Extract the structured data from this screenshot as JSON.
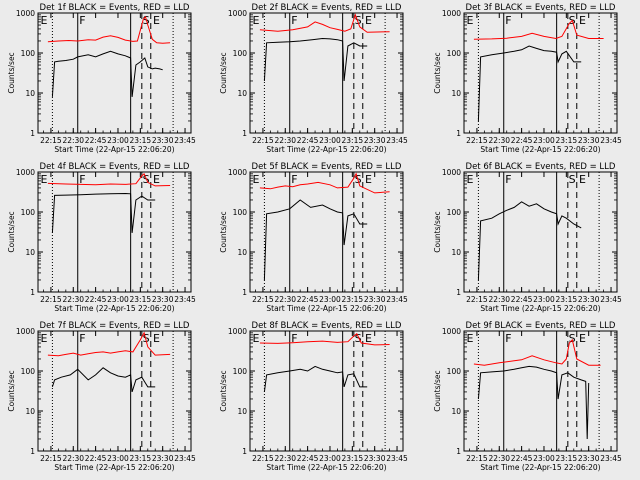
{
  "colors": {
    "background": "#ebebeb",
    "events": "#000000",
    "lld": "#ff0000"
  },
  "markers": {
    "e": "E",
    "f": "F",
    "s": "S",
    "e2": "E"
  },
  "x_tick_labels": [
    "22:15",
    "22:30",
    "22:45",
    "23:00",
    "23:15",
    "23:30",
    "23:45"
  ],
  "y_tick_labels": [
    "1",
    "10",
    "100",
    "1000"
  ],
  "ylabel": "Counts/sec",
  "xlabel": "Start Time (22-Apr-15 22:06:20)",
  "chart_data": [
    {
      "type": "line",
      "title": "Det 1f BLACK = Events, RED = LLD",
      "xlabel": "Start Time (22-Apr-15 22:06:20)",
      "ylabel": "Counts/sec",
      "ylim": [
        1,
        1000
      ],
      "yscale": "log",
      "series": [
        {
          "color": "#000000",
          "x": [
            "22:16:00",
            "22:17:30",
            "22:20:00",
            "22:25:00",
            "22:30:00",
            "22:33:00",
            "22:40:00",
            "22:45:00",
            "22:50:00",
            "22:55:00",
            "23:00:00",
            "23:05:00",
            "23:08:30",
            "23:09:30",
            "23:12:00",
            "23:15:00",
            "23:18:00",
            "23:20:00",
            "23:23:00",
            "23:25:00",
            "23:28:00",
            "23:30:00"
          ],
          "y": [
            8,
            60,
            62,
            65,
            70,
            80,
            90,
            80,
            95,
            110,
            95,
            85,
            75,
            8,
            50,
            60,
            75,
            45,
            40,
            42,
            40,
            38
          ]
        },
        {
          "color": "#ff0000",
          "x": [
            "22:13:00",
            "22:20:00",
            "22:27:00",
            "22:33:00",
            "22:40:00",
            "22:45:00",
            "22:50:00",
            "22:55:00",
            "23:00:00",
            "23:05:00",
            "23:10:00",
            "23:13:00",
            "23:17:00",
            "23:18:30",
            "23:20:00",
            "23:23:00",
            "23:26:00",
            "23:30:00",
            "23:35:00"
          ],
          "y": [
            190,
            200,
            205,
            200,
            215,
            210,
            250,
            270,
            245,
            210,
            195,
            200,
            700,
            800,
            500,
            220,
            180,
            175,
            180
          ]
        }
      ]
    },
    {
      "type": "line",
      "title": "Det 2f BLACK = Events, RED = LLD",
      "xlabel": "Start Time (22-Apr-15 22:06:20)",
      "ylabel": "Counts/sec",
      "ylim": [
        1,
        1000
      ],
      "yscale": "log",
      "series": [
        {
          "color": "#000000",
          "x": [
            "22:16:00",
            "22:17:30",
            "22:25:00",
            "22:33:00",
            "22:40:00",
            "22:48:00",
            "22:55:00",
            "23:00:00",
            "23:05:00",
            "23:08:30",
            "23:09:30",
            "23:12:00",
            "23:16:00",
            "23:20:00",
            "23:25:00"
          ],
          "y": [
            20,
            180,
            185,
            190,
            200,
            215,
            230,
            225,
            215,
            200,
            20,
            150,
            180,
            150,
            150
          ]
        },
        {
          "color": "#ff0000",
          "x": [
            "22:13:00",
            "22:25:00",
            "22:35:00",
            "22:45:00",
            "22:50:00",
            "22:55:00",
            "23:00:00",
            "23:05:00",
            "23:10:00",
            "23:14:00",
            "23:17:00",
            "23:20:00",
            "23:25:00",
            "23:40:00"
          ],
          "y": [
            380,
            350,
            380,
            450,
            600,
            520,
            430,
            390,
            350,
            400,
            900,
            450,
            330,
            340
          ]
        }
      ]
    },
    {
      "type": "line",
      "title": "Det 3f BLACK = Events, RED = LLD",
      "xlabel": "Start Time (22-Apr-15 22:06:20)",
      "ylabel": "Counts/sec",
      "ylim": [
        1,
        1000
      ],
      "yscale": "log",
      "series": [
        {
          "color": "#000000",
          "x": [
            "22:16:00",
            "22:17:30",
            "22:25:00",
            "22:33:00",
            "22:40:00",
            "22:45:00",
            "22:50:00",
            "22:55:00",
            "23:00:00",
            "23:05:00",
            "23:08:30",
            "23:09:30",
            "23:12:00",
            "23:15:00",
            "23:20:00",
            "23:25:00"
          ],
          "y": [
            2,
            80,
            90,
            100,
            110,
            120,
            150,
            130,
            115,
            110,
            105,
            60,
            95,
            110,
            60,
            60
          ]
        },
        {
          "color": "#ff0000",
          "x": [
            "22:13:00",
            "22:25:00",
            "22:35:00",
            "22:45:00",
            "22:52:00",
            "23:00:00",
            "23:08:00",
            "23:12:00",
            "23:17:00",
            "23:19:00",
            "23:22:00",
            "23:30:00",
            "23:40:00"
          ],
          "y": [
            220,
            225,
            235,
            260,
            310,
            260,
            230,
            260,
            550,
            650,
            280,
            230,
            230
          ]
        }
      ]
    },
    {
      "type": "line",
      "title": "Det 4f BLACK = Events, RED = LLD",
      "xlabel": "Start Time (22-Apr-15 22:06:20)",
      "ylabel": "Counts/sec",
      "ylim": [
        1,
        1000
      ],
      "yscale": "log",
      "series": [
        {
          "color": "#000000",
          "x": [
            "22:16:00",
            "22:17:30",
            "22:25:00",
            "22:35:00",
            "22:45:00",
            "22:55:00",
            "23:05:00",
            "23:08:30",
            "23:09:30",
            "23:12:00",
            "23:16:00",
            "23:20:00",
            "23:25:00"
          ],
          "y": [
            30,
            260,
            265,
            270,
            280,
            285,
            290,
            285,
            30,
            200,
            250,
            200,
            200
          ]
        },
        {
          "color": "#ff0000",
          "x": [
            "22:13:00",
            "22:25:00",
            "22:35:00",
            "22:45:00",
            "22:55:00",
            "23:05:00",
            "23:12:00",
            "23:16:00",
            "23:17:30",
            "23:20:00",
            "23:25:00",
            "23:35:00"
          ],
          "y": [
            520,
            500,
            490,
            480,
            500,
            490,
            510,
            800,
            900,
            550,
            450,
            460
          ]
        }
      ]
    },
    {
      "type": "line",
      "title": "Det 5f BLACK = Events, RED = LLD",
      "xlabel": "Start Time (22-Apr-15 22:06:20)",
      "ylabel": "Counts/sec",
      "ylim": [
        1,
        1000
      ],
      "yscale": "log",
      "series": [
        {
          "color": "#000000",
          "x": [
            "22:16:00",
            "22:17:30",
            "22:25:00",
            "22:33:00",
            "22:40:00",
            "22:47:00",
            "22:55:00",
            "23:00:00",
            "23:05:00",
            "23:08:30",
            "23:09:30",
            "23:12:00",
            "23:16:00",
            "23:20:00",
            "23:25:00"
          ],
          "y": [
            2,
            90,
            100,
            120,
            200,
            130,
            150,
            120,
            100,
            95,
            15,
            80,
            90,
            50,
            50
          ]
        },
        {
          "color": "#ff0000",
          "x": [
            "22:13:00",
            "22:20:00",
            "22:25:00",
            "22:30:00",
            "22:35:00",
            "22:40:00",
            "22:45:00",
            "22:52:00",
            "23:00:00",
            "23:05:00",
            "23:12:00",
            "23:16:00",
            "23:17:30",
            "23:20:00",
            "23:30:00",
            "23:40:00"
          ],
          "y": [
            400,
            380,
            420,
            450,
            430,
            480,
            500,
            550,
            480,
            400,
            420,
            700,
            900,
            450,
            300,
            320
          ]
        }
      ]
    },
    {
      "type": "line",
      "title": "Det 6f BLACK = Events, RED = LLD",
      "xlabel": "Start Time (22-Apr-15 22:06:20)",
      "ylabel": "Counts/sec",
      "ylim": [
        1,
        1000
      ],
      "yscale": "log",
      "series": [
        {
          "color": "#000000",
          "x": [
            "22:16:00",
            "22:17:30",
            "22:25:00",
            "22:30:00",
            "22:35:00",
            "22:40:00",
            "22:45:00",
            "22:50:00",
            "22:55:00",
            "23:00:00",
            "23:05:00",
            "23:08:30",
            "23:09:30",
            "23:12:00",
            "23:15:00",
            "23:20:00",
            "23:25:00"
          ],
          "y": [
            2,
            60,
            70,
            90,
            110,
            130,
            180,
            140,
            160,
            120,
            100,
            90,
            50,
            80,
            70,
            50,
            40
          ]
        }
      ]
    },
    {
      "type": "line",
      "title": "Det 7f BLACK = Events, RED = LLD",
      "xlabel": "Start Time (22-Apr-15 22:06:20)",
      "ylabel": "Counts/sec",
      "ylim": [
        1,
        1000
      ],
      "yscale": "log",
      "series": [
        {
          "color": "#000000",
          "x": [
            "22:16:00",
            "22:17:30",
            "22:22:00",
            "22:28:00",
            "22:33:00",
            "22:40:00",
            "22:45:00",
            "22:50:00",
            "22:55:00",
            "23:00:00",
            "23:05:00",
            "23:08:30",
            "23:09:30",
            "23:12:00",
            "23:16:00",
            "23:20:00",
            "23:25:00"
          ],
          "y": [
            40,
            60,
            70,
            80,
            110,
            60,
            80,
            120,
            90,
            75,
            70,
            80,
            30,
            60,
            70,
            40,
            40
          ]
        },
        {
          "color": "#ff0000",
          "x": [
            "22:13:00",
            "22:20:00",
            "22:25:00",
            "22:30:00",
            "22:35:00",
            "22:40:00",
            "22:45:00",
            "22:50:00",
            "22:55:00",
            "23:00:00",
            "23:05:00",
            "23:10:00",
            "23:15:00",
            "23:17:30",
            "23:20:00",
            "23:25:00",
            "23:35:00"
          ],
          "y": [
            250,
            240,
            260,
            280,
            250,
            270,
            290,
            300,
            280,
            300,
            320,
            300,
            600,
            900,
            400,
            250,
            260
          ]
        }
      ]
    },
    {
      "type": "line",
      "title": "Det 8f BLACK = Events, RED = LLD",
      "xlabel": "Start Time (22-Apr-15 22:06:20)",
      "ylabel": "Counts/sec",
      "ylim": [
        1,
        1000
      ],
      "yscale": "log",
      "series": [
        {
          "color": "#000000",
          "x": [
            "22:16:00",
            "22:17:30",
            "22:25:00",
            "22:33:00",
            "22:40:00",
            "22:45:00",
            "22:50:00",
            "22:55:00",
            "23:00:00",
            "23:05:00",
            "23:08:30",
            "23:09:30",
            "23:12:00",
            "23:16:00",
            "23:20:00",
            "23:25:00"
          ],
          "y": [
            30,
            80,
            90,
            100,
            110,
            100,
            130,
            110,
            100,
            90,
            95,
            40,
            80,
            85,
            40,
            40
          ]
        },
        {
          "color": "#ff0000",
          "x": [
            "22:13:00",
            "22:25:00",
            "22:35:00",
            "22:45:00",
            "22:55:00",
            "23:05:00",
            "23:12:00",
            "23:16:00",
            "23:18:00",
            "23:21:00",
            "23:30:00",
            "23:40:00"
          ],
          "y": [
            500,
            490,
            510,
            540,
            560,
            520,
            540,
            750,
            850,
            500,
            450,
            460
          ]
        }
      ]
    },
    {
      "type": "line",
      "title": "Det 9f BLACK = Events, RED = LLD",
      "xlabel": "Start Time (22-Apr-15 22:06:20)",
      "ylabel": "Counts/sec",
      "ylim": [
        1,
        1000
      ],
      "yscale": "log",
      "series": [
        {
          "color": "#000000",
          "x": [
            "22:16:00",
            "22:17:30",
            "22:25:00",
            "22:33:00",
            "22:40:00",
            "22:45:00",
            "22:50:00",
            "22:55:00",
            "23:00:00",
            "23:05:00",
            "23:08:30",
            "23:09:30",
            "23:12:00",
            "23:16:00",
            "23:20:00",
            "23:25:00",
            "23:28:00",
            "23:29:00",
            "23:30:00"
          ],
          "y": [
            20,
            90,
            95,
            100,
            110,
            120,
            130,
            125,
            110,
            100,
            90,
            20,
            80,
            90,
            70,
            60,
            55,
            2,
            50
          ]
        },
        {
          "color": "#ff0000",
          "x": [
            "22:13:00",
            "22:20:00",
            "22:30:00",
            "22:40:00",
            "22:45:00",
            "22:52:00",
            "23:00:00",
            "23:08:00",
            "23:12:00",
            "23:15:00",
            "23:17:00",
            "23:19:00",
            "23:22:00",
            "23:30:00",
            "23:38:00"
          ],
          "y": [
            150,
            140,
            160,
            180,
            190,
            240,
            190,
            160,
            150,
            200,
            500,
            600,
            200,
            140,
            140
          ]
        }
      ]
    }
  ]
}
